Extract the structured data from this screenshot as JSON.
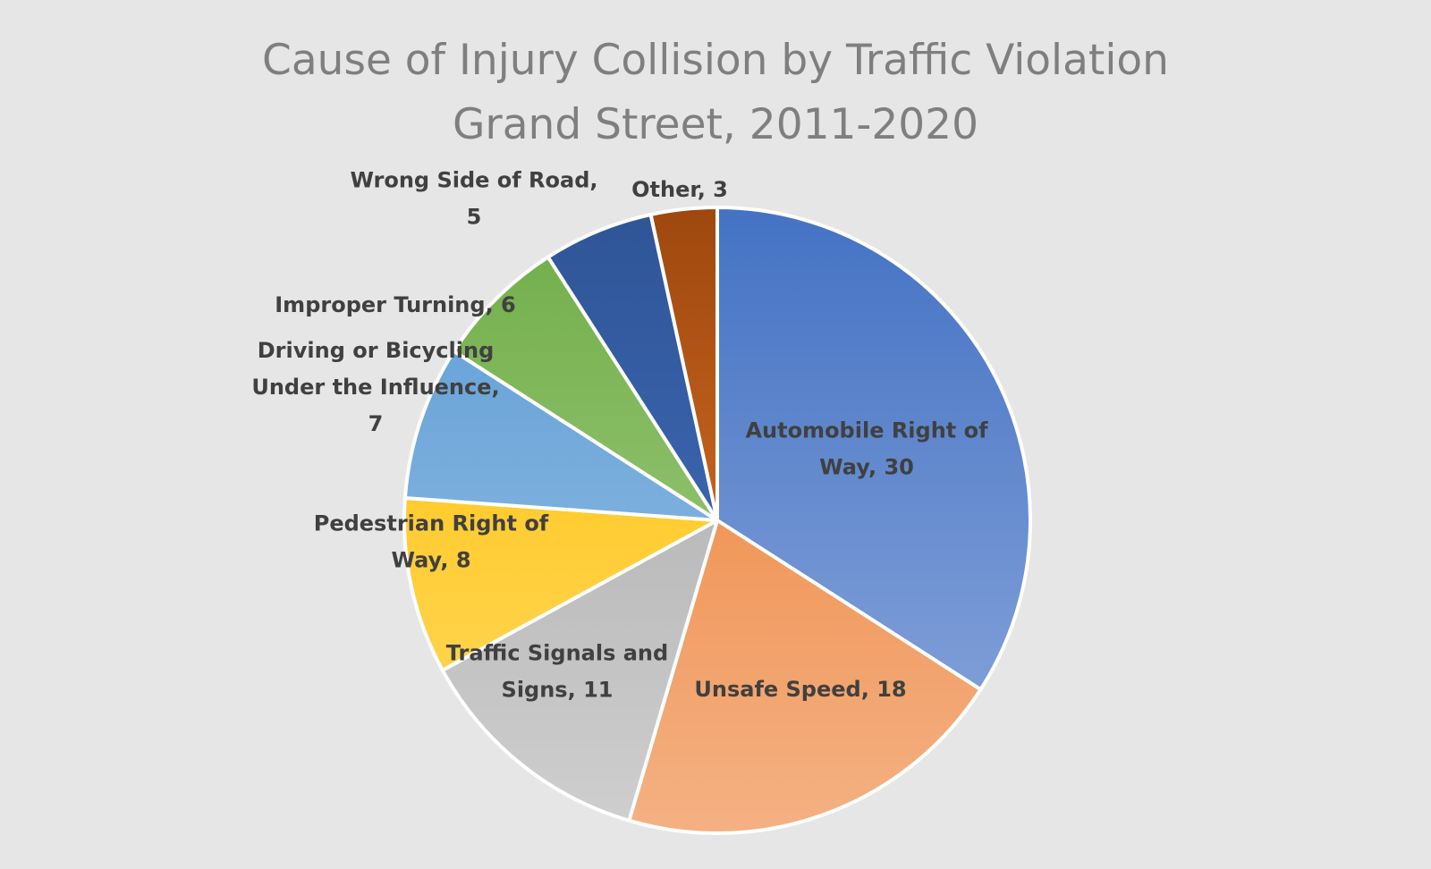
{
  "chart_data": {
    "type": "pie",
    "title_lines": [
      "Cause of Injury Collision by Traffic Violation",
      "Grand Street, 2011-2020"
    ],
    "slices": [
      {
        "name": "Automobile Right of Way",
        "value": 30,
        "color_start": "#4472c4",
        "color_end": "#8faadc",
        "label_lines": [
          "Automobile Right of",
          "Way, 30"
        ]
      },
      {
        "name": "Unsafe Speed",
        "value": 18,
        "color_start": "#ed7d31",
        "color_end": "#f4b183",
        "label_lines": [
          "Unsafe Speed, 18"
        ]
      },
      {
        "name": "Traffic Signals and Signs",
        "value": 11,
        "color_start": "#a5a5a5",
        "color_end": "#cfcfcf",
        "label_lines": [
          "Traffic Signals and",
          "Signs, 11"
        ]
      },
      {
        "name": "Pedestrian Right of Way",
        "value": 8,
        "color_start": "#ffc000",
        "color_end": "#ffd966",
        "label_lines": [
          "Pedestrian Right of",
          "Way, 8"
        ]
      },
      {
        "name": "Driving or Bicycling Under the Influence",
        "value": 7,
        "color_start": "#5b9bd5",
        "color_end": "#9dc3e6",
        "label_lines": [
          "Driving or Bicycling",
          "Under the Influence,",
          "7"
        ]
      },
      {
        "name": "Improper Turning",
        "value": 6,
        "color_start": "#70ad47",
        "color_end": "#a9d18e",
        "label_lines": [
          "Improper Turning, 6"
        ]
      },
      {
        "name": "Wrong Side of Road",
        "value": 5,
        "color_start": "#2f5597",
        "color_end": "#4472c4",
        "label_lines": [
          "Wrong Side of Road,",
          "5"
        ]
      },
      {
        "name": "Other",
        "value": 3,
        "color_start": "#9e480e",
        "color_end": "#ed7d31",
        "label_lines": [
          "Other, 3"
        ]
      }
    ],
    "legend": "none",
    "background": "#e7e6e6",
    "title_color": "#7f7f7f",
    "label_color": "#404040",
    "slice_border_color": "#ffffff"
  }
}
